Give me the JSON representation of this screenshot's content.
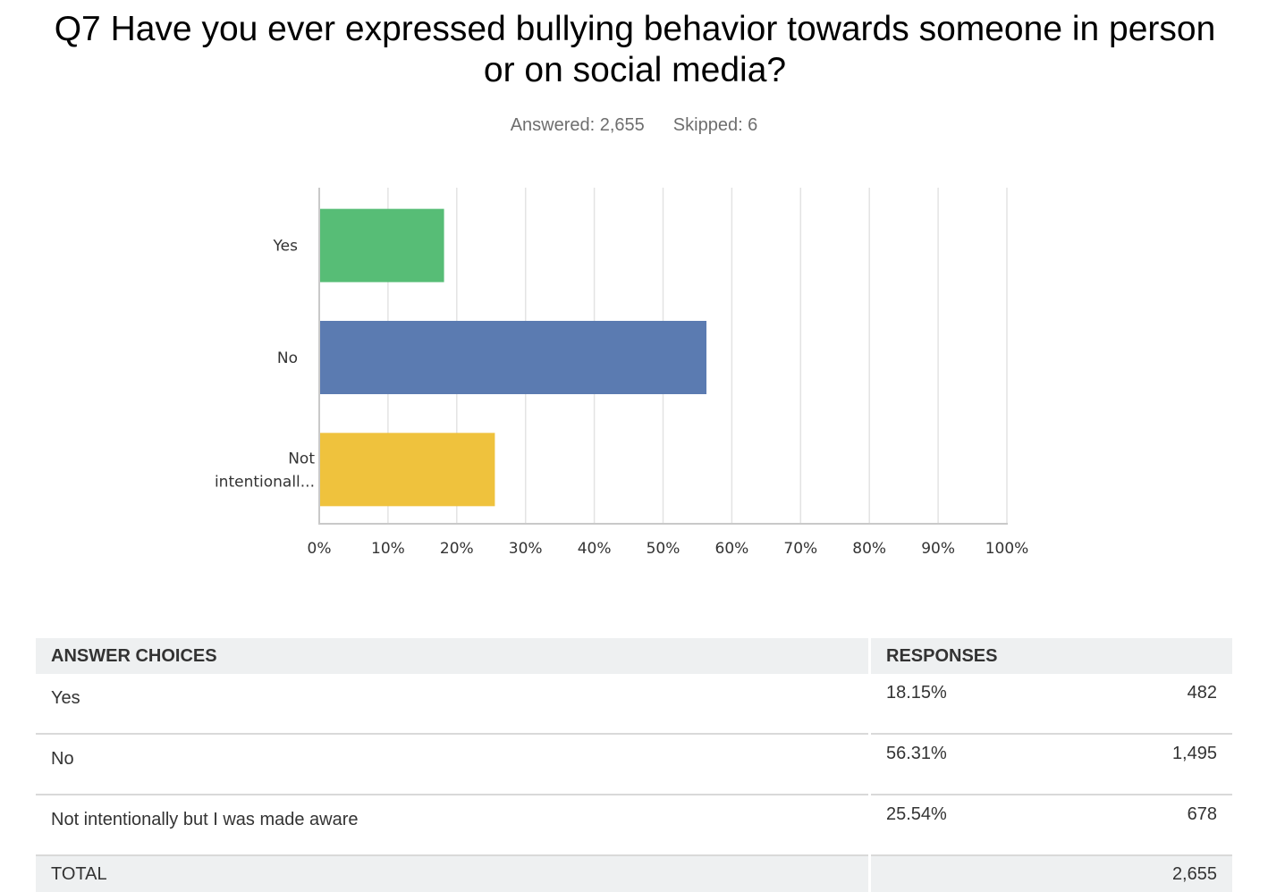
{
  "question": {
    "title": "Q7 Have you ever expressed bullying behavior towards someone in person or on social media?",
    "answered_label": "Answered: 2,655",
    "skipped_label": "Skipped: 6"
  },
  "chart_data": {
    "type": "bar",
    "orientation": "horizontal",
    "categories": [
      "Yes",
      "No",
      "Not intentionall..."
    ],
    "values": [
      18.15,
      56.31,
      25.54
    ],
    "colors": [
      "#57bd76",
      "#5b7bb1",
      "#efc23d"
    ],
    "xlim": [
      0,
      100
    ],
    "x_ticks": [
      "0%",
      "10%",
      "20%",
      "30%",
      "40%",
      "50%",
      "60%",
      "70%",
      "80%",
      "90%",
      "100%"
    ],
    "grid": true
  },
  "table": {
    "headers": [
      "ANSWER CHOICES",
      "RESPONSES"
    ],
    "rows": [
      {
        "choice": "Yes",
        "percent": "18.15%",
        "count": "482"
      },
      {
        "choice": "No",
        "percent": "56.31%",
        "count": "1,495"
      },
      {
        "choice": "Not intentionally but I was made aware",
        "percent": "25.54%",
        "count": "678"
      }
    ],
    "total_label": "TOTAL",
    "total_count": "2,655"
  }
}
